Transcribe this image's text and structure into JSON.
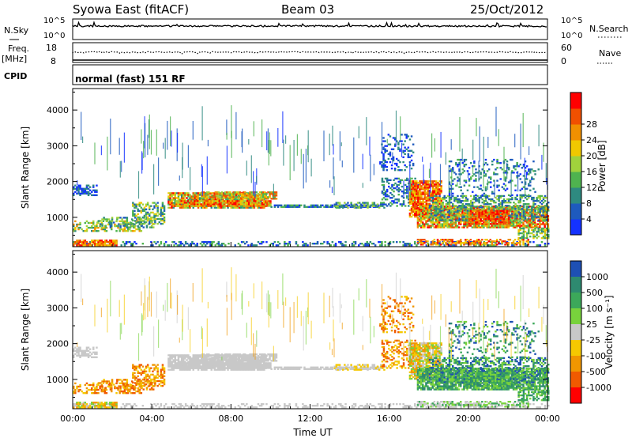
{
  "header": {
    "station": "Syowa East (fitACF)",
    "beam": "Beam 03",
    "date": "25/Oct/2012"
  },
  "strip": {
    "nsky_label": "N.Sky",
    "nsky_ticks": [
      "10^5",
      "10^0"
    ],
    "nsearch_label": "N.Search",
    "nsearch_ticks": [
      "10^5",
      "10^0"
    ],
    "freq_label": "Freq.",
    "freq_unit": "[MHz]",
    "freq_ticks": [
      "18",
      "8"
    ],
    "nave_label": "Nave",
    "nave_ticks": [
      "60",
      "0"
    ],
    "cpid_label": "CPID",
    "cpid_text": "normal (fast) 151 RF"
  },
  "chart_data": [
    {
      "type": "heatmap",
      "name": "power",
      "ylabel": "Slant Range [km]",
      "yticks": [
        "1000",
        "2000",
        "3000",
        "4000"
      ],
      "ylim": [
        180,
        4600
      ],
      "xlim": [
        0,
        24
      ],
      "colorbar_label": "Power [dB]",
      "colorbar_ticks": [
        "4",
        "8",
        "12",
        "16",
        "20",
        "24",
        "28"
      ],
      "colors": [
        "#1432ff",
        "#1e5abe",
        "#2e8a80",
        "#4fb34f",
        "#a0d23c",
        "#f0c800",
        "#f09000",
        "#f05000",
        "#ff0000"
      ]
    },
    {
      "type": "heatmap",
      "name": "velocity",
      "ylabel": "Slant Range [km]",
      "yticks": [
        "1000",
        "2000",
        "3000",
        "4000"
      ],
      "ylim": [
        180,
        4600
      ],
      "xlim": [
        0,
        24
      ],
      "xticks": [
        "00:00",
        "04:00",
        "08:00",
        "12:00",
        "16:00",
        "20:00",
        "00:00"
      ],
      "xlabel": "Time UT",
      "colorbar_label": "Velocity [m s⁻¹]",
      "colorbar_ticks": [
        "1000",
        "500",
        "100",
        "25",
        "-25",
        "-100",
        "-500",
        "-1000"
      ],
      "colors": [
        "#1e50b4",
        "#2e8a70",
        "#3ca85a",
        "#78d23c",
        "#c8c8c8",
        "#f5c800",
        "#f09600",
        "#f05a00",
        "#ff0000"
      ]
    }
  ]
}
